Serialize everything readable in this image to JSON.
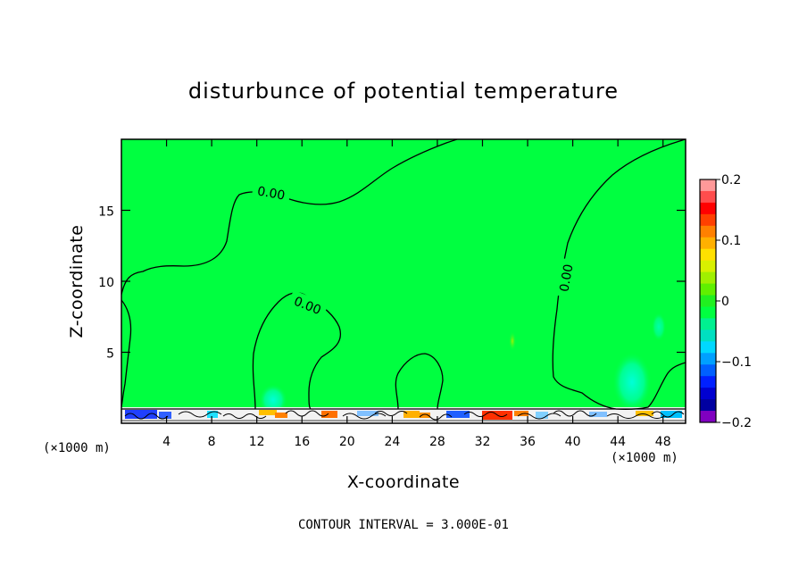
{
  "chart_data": {
    "type": "heatmap",
    "title": "disturbunce of potential temperature",
    "xlabel": "X-coordinate",
    "ylabel": "Z-coordinate",
    "x_unit_label_left": "(×1000 m)",
    "x_unit_label_right": "(×1000 m)",
    "footer": "CONTOUR INTERVAL = 3.000E-01",
    "xlim": [
      0,
      50
    ],
    "ylim": [
      0,
      20
    ],
    "x_ticks": [
      4,
      8,
      12,
      16,
      20,
      24,
      28,
      32,
      36,
      40,
      44,
      48
    ],
    "y_ticks": [
      5,
      10,
      15
    ],
    "background_value": 0.0,
    "contour_labels": [
      "0.00",
      "0.00",
      "0.00"
    ],
    "colorbar": {
      "min": -0.2,
      "max": 0.2,
      "tick_labels": [
        "0.2",
        "0.1",
        "0",
        "-0.1",
        "-0.2"
      ],
      "tick_values": [
        0.2,
        0.1,
        0.0,
        -0.1,
        -0.2
      ],
      "colors": [
        "#ff9999",
        "#ff4d4d",
        "#ff0000",
        "#ff4000",
        "#ff8000",
        "#ffb000",
        "#ffe000",
        "#d8f000",
        "#a0f000",
        "#60f000",
        "#20f020",
        "#00ff40",
        "#00f090",
        "#00e0c0",
        "#00d8ff",
        "#00a0ff",
        "#0060ff",
        "#0020ff",
        "#0000d0",
        "#0000a0",
        "#8000c0"
      ]
    },
    "features": [
      {
        "type": "contour_zero",
        "description_value": 0.0
      },
      {
        "type": "local_min",
        "x": 13.5,
        "z": 2.0,
        "value": -0.05
      },
      {
        "type": "local_min",
        "x": 45.0,
        "z": 3.0,
        "value": -0.05
      },
      {
        "type": "local_max",
        "x": 34.3,
        "z": 6.0,
        "value": 0.05
      }
    ]
  }
}
